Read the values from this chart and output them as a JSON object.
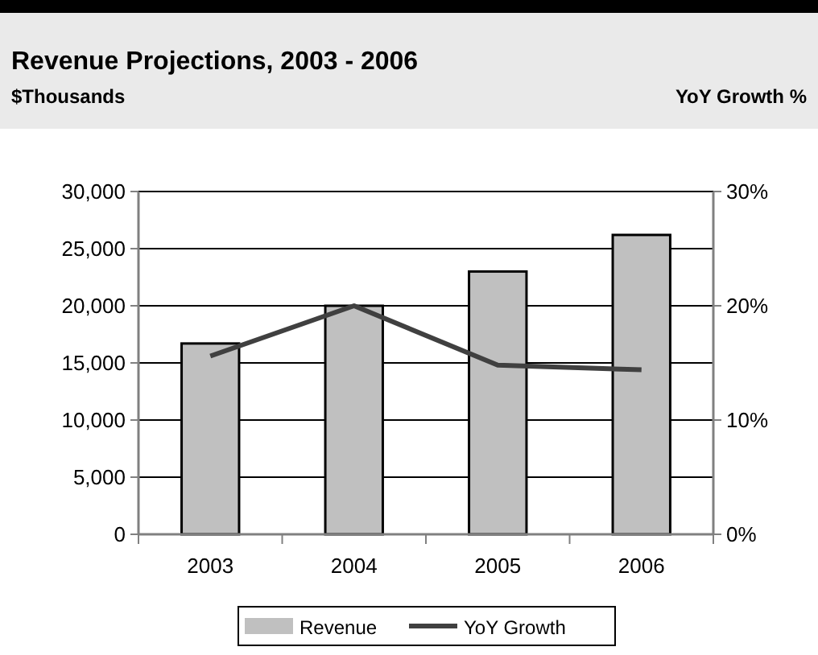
{
  "chart_data": {
    "type": "bar",
    "title": "Revenue Projections, 2003 - 2006",
    "ylabel": "$Thousands",
    "y2label": "YoY Growth %",
    "categories": [
      "2003",
      "2004",
      "2005",
      "2006"
    ],
    "series": [
      {
        "name": "Revenue",
        "color": "#c0c0c0",
        "values": [
          16700,
          20000,
          23000,
          26200
        ]
      },
      {
        "name": "YoY Growth",
        "type": "line",
        "axis": "y2",
        "color": "#404040",
        "values": [
          15.6,
          20,
          14.8,
          14.4
        ]
      }
    ],
    "ylim": [
      0,
      30000
    ],
    "yticks": [
      {
        "value": 0,
        "label": "0"
      },
      {
        "value": 5000,
        "label": "5,000"
      },
      {
        "value": 10000,
        "label": "10,000"
      },
      {
        "value": 15000,
        "label": "15,000"
      },
      {
        "value": 20000,
        "label": "20,000"
      },
      {
        "value": 25000,
        "label": "25,000"
      },
      {
        "value": 30000,
        "label": "30,000"
      }
    ],
    "y2lim": [
      0,
      30
    ],
    "y2ticks": [
      {
        "value": 0,
        "label": "0%"
      },
      {
        "value": 10,
        "label": "10%"
      },
      {
        "value": 20,
        "label": "20%"
      },
      {
        "value": 30,
        "label": "30%"
      }
    ],
    "grid": "y",
    "legend": "bottom",
    "marker": "none",
    "line_style": "solid"
  }
}
